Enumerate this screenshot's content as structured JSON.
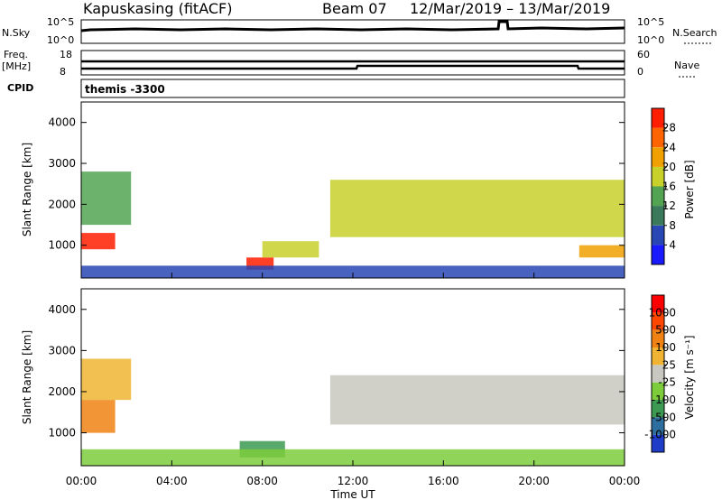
{
  "header": {
    "station": "Kapuskasing (fitACF)",
    "beam": "Beam 07",
    "dates": "12/Mar/2019 – 13/Mar/2019"
  },
  "top_panels": {
    "nsky_label": "N.Sky",
    "nsky_ticks": [
      "10^5",
      "10^0"
    ],
    "nsearch_label": "N.Search",
    "freq_label_1": "Freq.",
    "freq_label_2": "[MHz]",
    "freq_ticks": [
      "18",
      "8"
    ],
    "nave_label": "Nave",
    "nave_ticks": [
      "60",
      "0"
    ],
    "cpid_label": "CPID",
    "cpid_value": "themis -3300"
  },
  "chart_data": [
    {
      "type": "heatmap",
      "name": "power",
      "ylabel": "Slant Range [km]",
      "xlabel": "",
      "ylim": [
        200,
        4500
      ],
      "yticks": [
        "1000",
        "2000",
        "3000",
        "4000"
      ],
      "x_ticks": [
        "00:00",
        "04:00",
        "08:00",
        "12:00",
        "16:00",
        "20:00",
        "00:00"
      ],
      "colorbar": {
        "label": "Power [dB]",
        "ticks": [
          "4",
          "8",
          "12",
          "16",
          "20",
          "24",
          "28"
        ],
        "colors": [
          "#1a1aff",
          "#2846b4",
          "#3a7a5a",
          "#52a352",
          "#c8d02a",
          "#f0a000",
          "#ff6400",
          "#ff1e00"
        ]
      },
      "regions": [
        {
          "t0": 0.0,
          "t1": 1.5,
          "r0": 900,
          "r1": 1300,
          "level": 7
        },
        {
          "t0": 0.0,
          "t1": 2.2,
          "r0": 1500,
          "r1": 2800,
          "level": 3
        },
        {
          "t0": 7.3,
          "t1": 8.5,
          "r0": 400,
          "r1": 700,
          "level": 7
        },
        {
          "t0": 8.0,
          "t1": 10.5,
          "r0": 700,
          "r1": 1100,
          "level": 4
        },
        {
          "t0": 11.0,
          "t1": 24.0,
          "r0": 1200,
          "r1": 2600,
          "level": 4
        },
        {
          "t0": 22.0,
          "t1": 24.0,
          "r0": 700,
          "r1": 1000,
          "level": 5
        },
        {
          "t0": 0.0,
          "t1": 24.0,
          "r0": 200,
          "r1": 500,
          "level": 1
        }
      ]
    },
    {
      "type": "heatmap",
      "name": "velocity",
      "ylabel": "Slant Range [km]",
      "xlabel": "Time UT",
      "ylim": [
        200,
        4500
      ],
      "yticks": [
        "1000",
        "2000",
        "3000",
        "4000"
      ],
      "x_ticks": [
        "00:00",
        "04:00",
        "08:00",
        "12:00",
        "16:00",
        "20:00",
        "00:00"
      ],
      "colorbar": {
        "label": "Velocity [m s⁻¹]",
        "ticks": [
          "1000",
          "500",
          "100",
          "25",
          "-25",
          "-100",
          "-500",
          "-1000"
        ],
        "colors": [
          "#1f3cc8",
          "#2e6e9e",
          "#3c9a52",
          "#7ccc3c",
          "#c8c8c0",
          "#f0b432",
          "#f08214",
          "#ff4600",
          "#ff0000"
        ]
      },
      "regions": [
        {
          "t0": 0.0,
          "t1": 1.5,
          "r0": 1000,
          "r1": 1800,
          "level": 6
        },
        {
          "t0": 0.0,
          "t1": 2.2,
          "r0": 1800,
          "r1": 2800,
          "level": 5
        },
        {
          "t0": 7.0,
          "t1": 9.0,
          "r0": 400,
          "r1": 800,
          "level": 2
        },
        {
          "t0": 11.0,
          "t1": 24.0,
          "r0": 1200,
          "r1": 2400,
          "level": 4
        },
        {
          "t0": 0.0,
          "t1": 24.0,
          "r0": 200,
          "r1": 600,
          "level": 3
        }
      ]
    }
  ]
}
